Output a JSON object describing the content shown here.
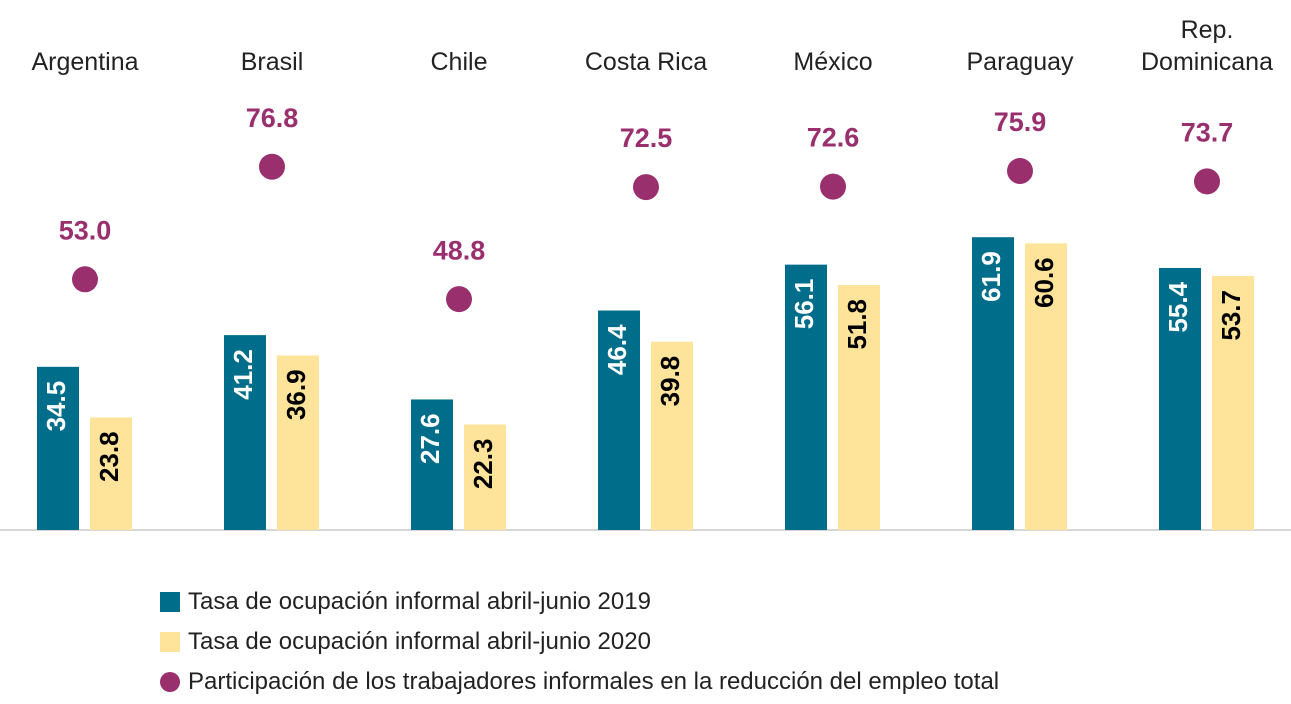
{
  "chart_data": {
    "type": "bar",
    "categories": [
      "Argentina",
      "Brasil",
      "Chile",
      "Costa Rica",
      "México",
      "Paraguay",
      "Rep. Dominicana"
    ],
    "series": [
      {
        "name": "Tasa de ocupación informal abril-junio 2019",
        "color": "#006d8a",
        "values": [
          34.5,
          41.2,
          27.6,
          46.4,
          56.1,
          61.9,
          55.4
        ]
      },
      {
        "name": "Tasa de ocupación informal abril-junio 2020",
        "color": "#fde49a",
        "values": [
          23.8,
          36.9,
          22.3,
          39.8,
          51.8,
          60.6,
          53.7
        ]
      },
      {
        "name": "Participación de los trabajadores informales en la reducción del empleo total",
        "type": "scatter",
        "color": "#9a2f6e",
        "values": [
          53.0,
          76.8,
          48.8,
          72.5,
          72.6,
          75.9,
          73.7
        ],
        "value_labels": [
          "53.0",
          "76.8",
          "48.8",
          "72.5",
          "72.6",
          "75.9",
          "73.7"
        ]
      }
    ]
  }
}
